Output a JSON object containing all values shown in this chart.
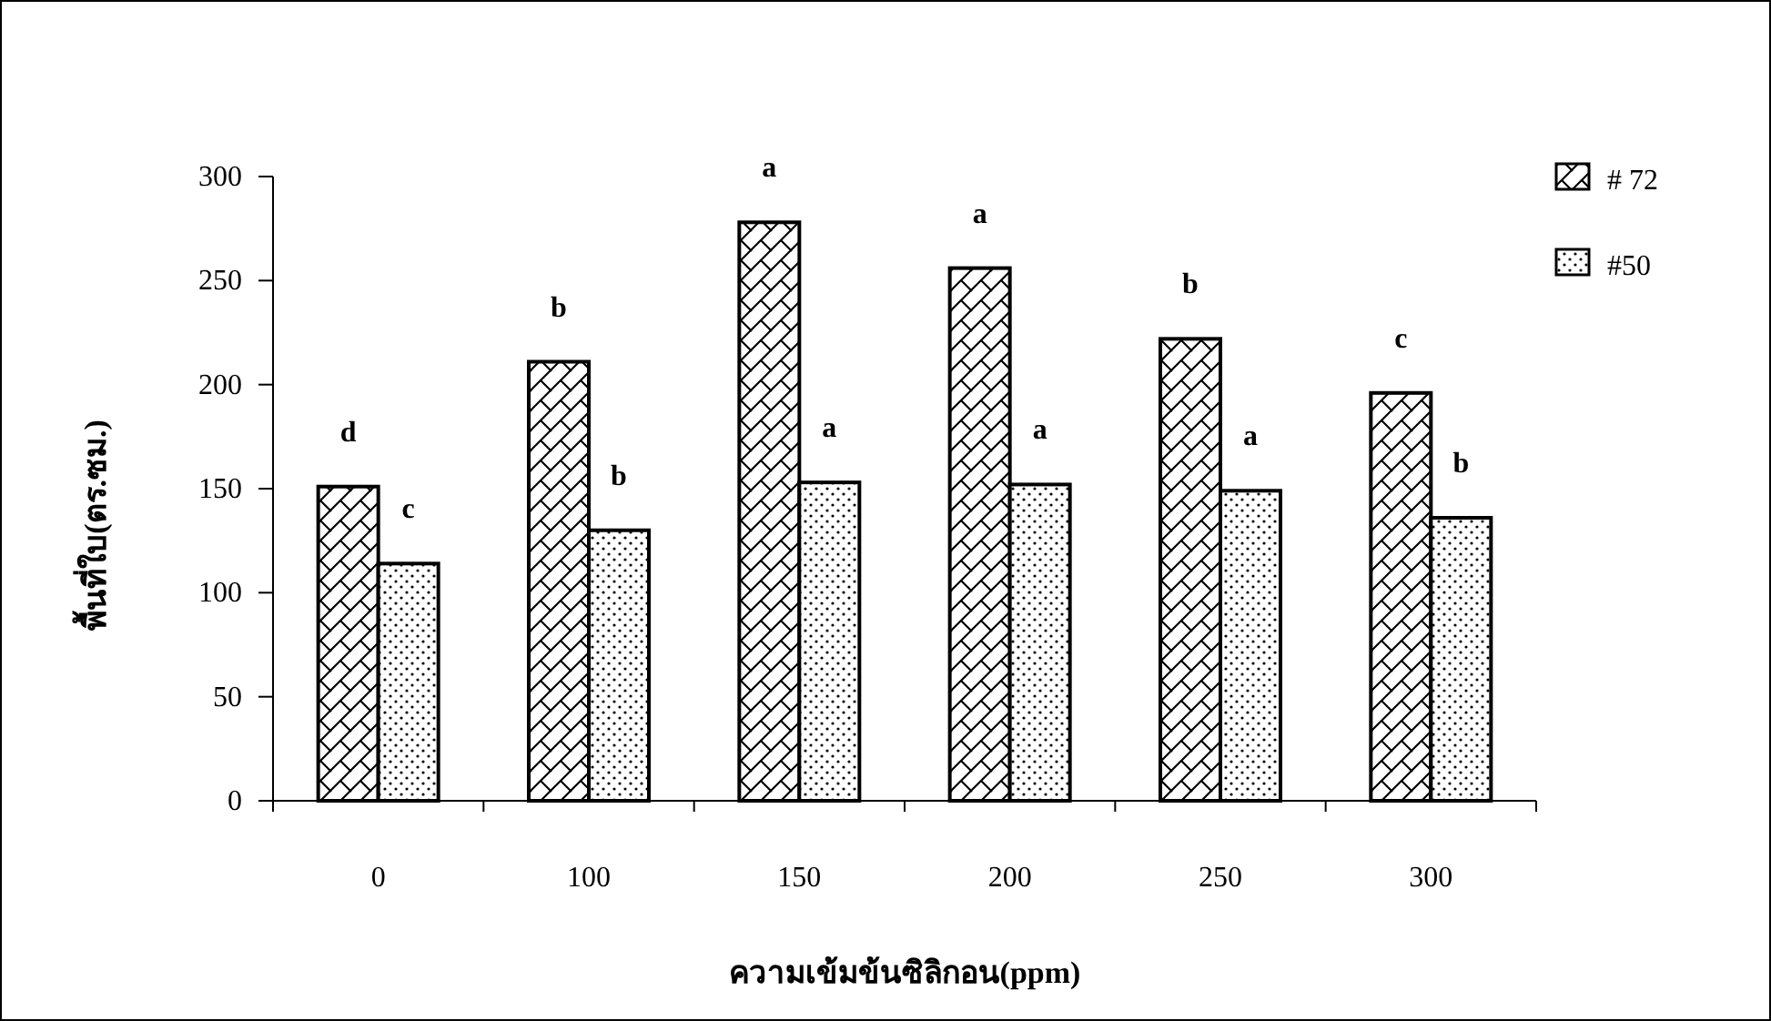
{
  "chart_data": {
    "type": "bar",
    "xlabel": "ความเข้มข้นซิลิกอน(ppm)",
    "ylabel": "พื้นที่ใบ(ตร.ซม.)",
    "categories": [
      "0",
      "100",
      "150",
      "200",
      "250",
      "300"
    ],
    "series": [
      {
        "name": "# 72",
        "color": "#000000",
        "values": [
          151,
          211,
          278,
          256,
          222,
          196
        ]
      },
      {
        "name": "#50",
        "color": "#000000",
        "values": [
          114,
          130,
          153,
          152,
          149,
          136
        ]
      }
    ],
    "ylim": [
      0,
      300
    ],
    "yticks": [
      0,
      50,
      100,
      150,
      200,
      250,
      300
    ],
    "legend": "top right",
    "annotations": [
      {
        "text": "d",
        "x": "0",
        "y": 151
      },
      {
        "text": "c",
        "x": "0",
        "y": 114
      },
      {
        "text": "b",
        "x": "100",
        "y": 211
      },
      {
        "text": "b",
        "x": "100",
        "y": 130
      },
      {
        "text": "a",
        "x": "150",
        "y": 278
      },
      {
        "text": "a",
        "x": "150",
        "y": 153
      },
      {
        "text": "a",
        "x": "200",
        "y": 256
      },
      {
        "text": "a",
        "x": "200",
        "y": 152
      },
      {
        "text": "b",
        "x": "250",
        "y": 222
      },
      {
        "text": "a",
        "x": "250",
        "y": 149
      },
      {
        "text": "c",
        "x": "300",
        "y": 196
      },
      {
        "text": "b",
        "x": "300",
        "y": 136
      }
    ]
  }
}
